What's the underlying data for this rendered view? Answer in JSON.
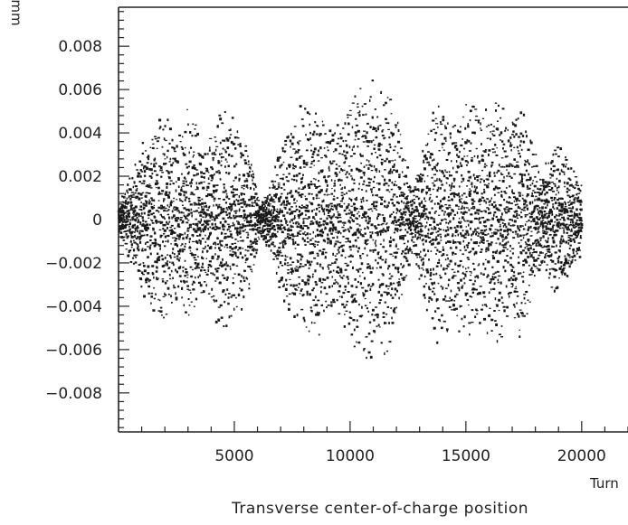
{
  "chart_data": {
    "type": "scatter",
    "caption": "Transverse center-of-charge position",
    "xlabel": "Turn",
    "ylabel": "mm",
    "xlim": [
      0,
      22000
    ],
    "ylim": [
      -0.0098,
      0.0098
    ],
    "grid": false,
    "x_ticks": [
      {
        "value": 5000,
        "label": "5000"
      },
      {
        "value": 10000,
        "label": "10000"
      },
      {
        "value": 15000,
        "label": "15000"
      },
      {
        "value": 20000,
        "label": "20000"
      }
    ],
    "y_ticks": [
      {
        "value": 0.008,
        "label": "0.008"
      },
      {
        "value": 0.006,
        "label": "0.006"
      },
      {
        "value": 0.004,
        "label": "0.004"
      },
      {
        "value": 0.002,
        "label": "0.002"
      },
      {
        "value": 0,
        "label": "0"
      },
      {
        "value": -0.002,
        "label": "-0.002"
      },
      {
        "value": -0.004,
        "label": "-0.004"
      },
      {
        "value": -0.006,
        "label": "-0.006"
      },
      {
        "value": -0.008,
        "label": "-0.008"
      }
    ],
    "series": [
      {
        "color": "#1a1a1a",
        "x_range": [
          0,
          20000
        ],
        "envelope": {
          "turn": [
            0,
            1000,
            1800,
            2500,
            3000,
            3800,
            4400,
            5000,
            5700,
            6100,
            6600,
            7300,
            8000,
            8500,
            9000,
            9600,
            10200,
            10800,
            11300,
            11800,
            12300,
            12700,
            13300,
            13800,
            14300,
            14800,
            15300,
            15800,
            16300,
            16800,
            17300,
            17800,
            18300,
            18800,
            19300,
            20000
          ],
          "max_abs_mm": [
            0.0006,
            0.0035,
            0.0055,
            0.004,
            0.0055,
            0.0035,
            0.0055,
            0.0048,
            0.0035,
            0.0008,
            0.0018,
            0.0048,
            0.0055,
            0.006,
            0.0045,
            0.005,
            0.0065,
            0.007,
            0.0063,
            0.0066,
            0.0035,
            0.0015,
            0.0045,
            0.006,
            0.0052,
            0.0056,
            0.0062,
            0.0052,
            0.0065,
            0.0052,
            0.0062,
            0.004,
            0.0022,
            0.0038,
            0.0032,
            0.0018
          ]
        }
      }
    ]
  }
}
